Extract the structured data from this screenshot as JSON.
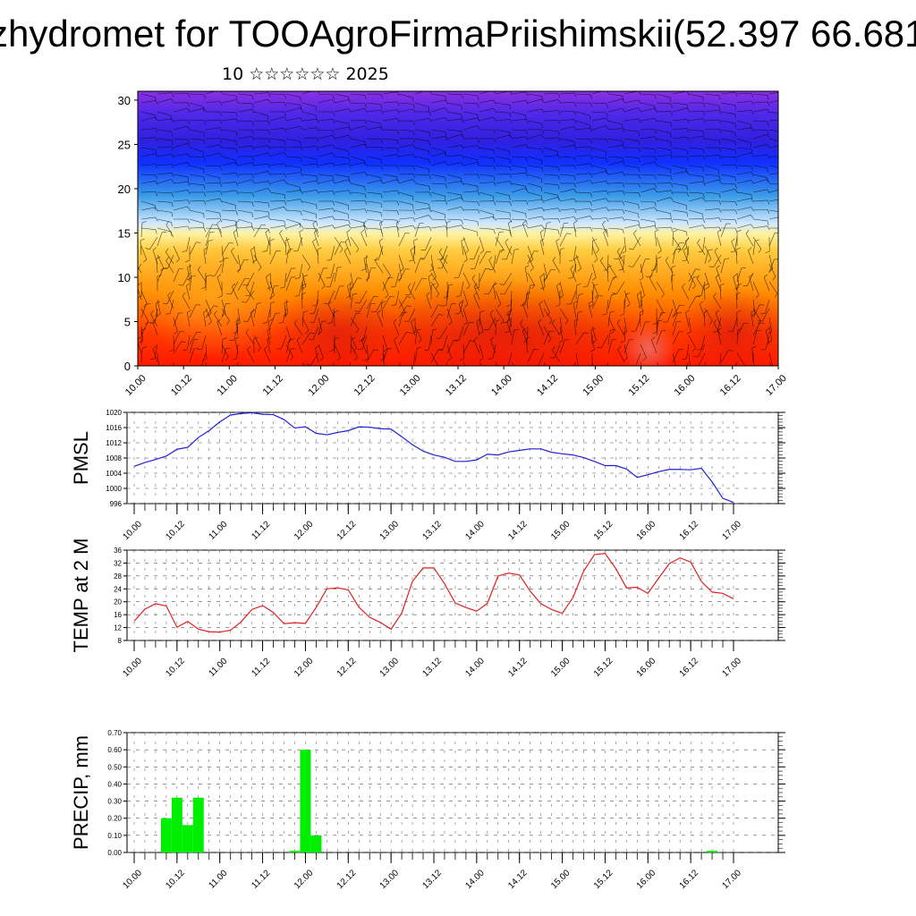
{
  "title": "zhydromet for TOOAgroFirmaPriishimskii(52.397 66.681",
  "subtitle": "10 ☆☆☆☆☆☆ 2025",
  "colors": {
    "pmsl_line": "#1f1fd6",
    "temp_line": "#e02020",
    "precip_bar": "#00ee00"
  },
  "chart_data": [
    {
      "type": "heatmap",
      "title": "",
      "ylabel": "",
      "ylim": [
        0,
        31
      ],
      "y_ticks": [
        "0",
        "5",
        "10",
        "15",
        "20",
        "25",
        "30"
      ],
      "x_ticks": [
        "10.00",
        "10.12",
        "11.00",
        "11.12",
        "12.00",
        "12.12",
        "13.00",
        "13.12",
        "14.00",
        "14.12",
        "15.00",
        "15.12",
        "16.00",
        "16.12",
        "17.00"
      ],
      "colormap": "rainbow: red (warm, low levels) to blue/purple (cold, upper levels)",
      "overlay": "wind barbs"
    },
    {
      "type": "line",
      "ylabel": "PMSL",
      "ylim": [
        996,
        1020
      ],
      "y_ticks": [
        "996",
        "1000",
        "1004",
        "1008",
        "1012",
        "1016",
        "1020"
      ],
      "x_ticks": [
        "10.00",
        "10.12",
        "11.00",
        "11.12",
        "12.00",
        "12.12",
        "13.00",
        "13.12",
        "14.00",
        "14.12",
        "15.00",
        "15.12",
        "16.00",
        "16.12",
        "17.00"
      ],
      "x": [
        0,
        3,
        6,
        9,
        12,
        15,
        18,
        21,
        24,
        27,
        30,
        33,
        36,
        39,
        42,
        45,
        48,
        51,
        54,
        57,
        60,
        63,
        66,
        69,
        72,
        75,
        78,
        81,
        84,
        87,
        90,
        93,
        96,
        99,
        102,
        105,
        108,
        111,
        114,
        117,
        120,
        123,
        126,
        129,
        132,
        135,
        138,
        141,
        144,
        147,
        150,
        153,
        156,
        159,
        162,
        165,
        168
      ],
      "values": [
        1005.8,
        1006.8,
        1007.6,
        1008.5,
        1010.3,
        1010.8,
        1013.4,
        1015.2,
        1017.5,
        1019.3,
        1019.7,
        1019.9,
        1019.5,
        1019.4,
        1018.1,
        1015.9,
        1016.2,
        1014.5,
        1014.1,
        1014.7,
        1015.2,
        1016.2,
        1016.1,
        1015.7,
        1015.6,
        1013.6,
        1011.5,
        1009.8,
        1008.8,
        1008.2,
        1007.1,
        1007.1,
        1007.5,
        1009.0,
        1008.8,
        1009.6,
        1010.0,
        1010.4,
        1010.4,
        1009.5,
        1009.1,
        1008.8,
        1008.1,
        1007.1,
        1006.0,
        1006.0,
        1005.1,
        1002.9,
        1003.6,
        1004.4,
        1005.0,
        1005.0,
        1004.9,
        1005.3,
        1001.7,
        997.4,
        996.3
      ]
    },
    {
      "type": "line",
      "ylabel": "TEMP at 2 M",
      "ylim": [
        8,
        36
      ],
      "y_ticks": [
        "8",
        "12",
        "16",
        "20",
        "24",
        "28",
        "32",
        "36"
      ],
      "x_ticks": [
        "10.00",
        "10.12",
        "11.00",
        "11.12",
        "12.00",
        "12.12",
        "13.00",
        "13.12",
        "14.00",
        "14.12",
        "15.00",
        "15.12",
        "16.00",
        "16.12",
        "17.00"
      ],
      "x": [
        0,
        3,
        6,
        9,
        12,
        15,
        18,
        21,
        24,
        27,
        30,
        33,
        36,
        39,
        42,
        45,
        48,
        51,
        54,
        57,
        60,
        63,
        66,
        69,
        72,
        75,
        78,
        81,
        84,
        87,
        90,
        93,
        96,
        99,
        102,
        105,
        108,
        111,
        114,
        117,
        120,
        123,
        126,
        129,
        132,
        135,
        138,
        141,
        144,
        147,
        150,
        153,
        156,
        159,
        162,
        165,
        168
      ],
      "values": [
        14.0,
        17.7,
        19.4,
        18.7,
        12.1,
        13.9,
        11.5,
        10.7,
        10.6,
        11.2,
        13.8,
        17.6,
        18.8,
        16.7,
        13.2,
        13.5,
        13.3,
        18.2,
        24.0,
        24.3,
        23.7,
        18.3,
        15.2,
        13.6,
        11.5,
        16.5,
        26.3,
        30.5,
        30.5,
        25.6,
        19.6,
        18.2,
        17.1,
        19.5,
        28.0,
        28.9,
        28.3,
        23.3,
        19.4,
        17.6,
        16.4,
        21.3,
        29.5,
        34.6,
        35.0,
        30.3,
        24.3,
        24.5,
        22.6,
        27.3,
        31.8,
        33.6,
        32.3,
        26.3,
        23.0,
        22.6,
        20.9
      ]
    },
    {
      "type": "bar",
      "ylabel": "PRECIP, mm",
      "ylim": [
        0,
        0.7
      ],
      "y_ticks": [
        "0.00",
        "0.10",
        "0.20",
        "0.30",
        "0.40",
        "0.50",
        "0.60",
        "0.70"
      ],
      "x_ticks": [
        "10.00",
        "10.12",
        "11.00",
        "11.12",
        "12.00",
        "12.12",
        "13.00",
        "13.12",
        "14.00",
        "14.12",
        "15.00",
        "15.12",
        "16.00",
        "16.12",
        "17.00"
      ],
      "x": [
        9,
        12,
        15,
        18,
        45,
        48,
        51,
        162
      ],
      "values": [
        0.2,
        0.32,
        0.16,
        0.32,
        0.01,
        0.6,
        0.1,
        0.01
      ]
    }
  ]
}
